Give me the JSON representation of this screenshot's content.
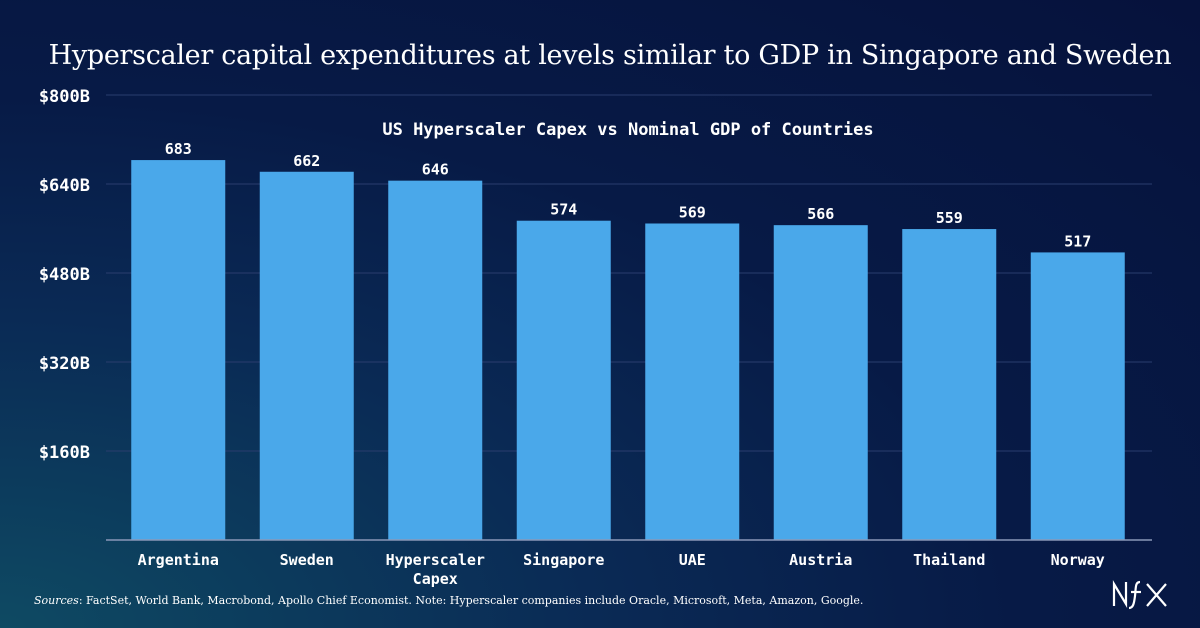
{
  "title": "Hyperscaler capital expenditures at levels similar to GDP in Singapore and Sweden",
  "sources": {
    "label": "Sources",
    "text": ": FactSet, World Bank, Macrobond, Apollo Chief Economist. Note: Hyperscaler companies include Oracle, Microsoft, Meta, Amazon, Google."
  },
  "logo": {
    "text": "NFX"
  },
  "colors": {
    "bar": "#4aa8ea",
    "grid": "#2a3d6e",
    "axis": "#ffffff"
  },
  "chart_data": {
    "type": "bar",
    "title": "US Hyperscaler Capex vs Nominal GDP of Countries",
    "categories": [
      "Argentina",
      "Sweden",
      "Hyperscaler Capex",
      "Singapore",
      "UAE",
      "Austria",
      "Thailand",
      "Norway"
    ],
    "values": [
      683,
      662,
      646,
      574,
      569,
      566,
      559,
      517
    ],
    "data_labels": [
      "683",
      "662",
      "646",
      "574",
      "569",
      "566",
      "559",
      "517"
    ],
    "yticks": [
      160,
      320,
      480,
      640,
      800
    ],
    "ytick_labels": [
      "$160B",
      "$320B",
      "$480B",
      "$640B",
      "$800B"
    ],
    "ylim": [
      0,
      800
    ],
    "xlabel": "",
    "ylabel": "",
    "grid": true
  }
}
